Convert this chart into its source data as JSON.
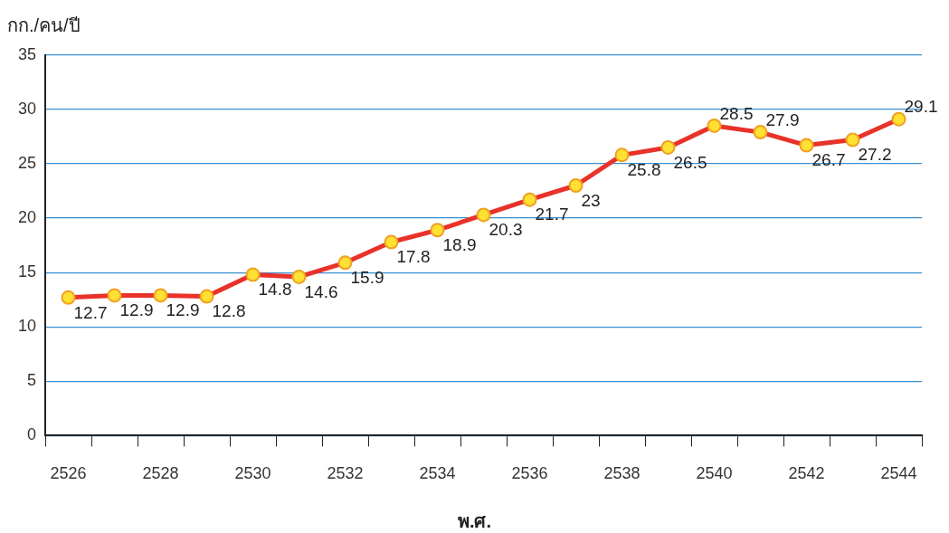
{
  "chart_data": {
    "type": "line",
    "xlabel": "พ.ศ.",
    "ylabel": "กก./คน/ปี",
    "categories": [
      "2526",
      null,
      "2528",
      null,
      "2530",
      null,
      "2532",
      null,
      "2534",
      null,
      "2536",
      null,
      "2538",
      null,
      "2540",
      null,
      "2542",
      null,
      "2544"
    ],
    "series": [
      {
        "color": "#e8322a",
        "values": [
          12.7,
          12.9,
          12.9,
          12.8,
          14.8,
          14.6,
          15.9,
          17.8,
          18.9,
          20.3,
          21.7,
          23,
          25.8,
          26.5,
          28.5,
          27.9,
          26.7,
          27.2,
          29.1
        ]
      }
    ],
    "ylim": [
      0,
      35
    ],
    "yticks": [
      0,
      5,
      10,
      15,
      20,
      25,
      30,
      35
    ],
    "grid": "y",
    "legend": false,
    "marker": "circle",
    "line_style": "solid",
    "data_labels": true
  }
}
